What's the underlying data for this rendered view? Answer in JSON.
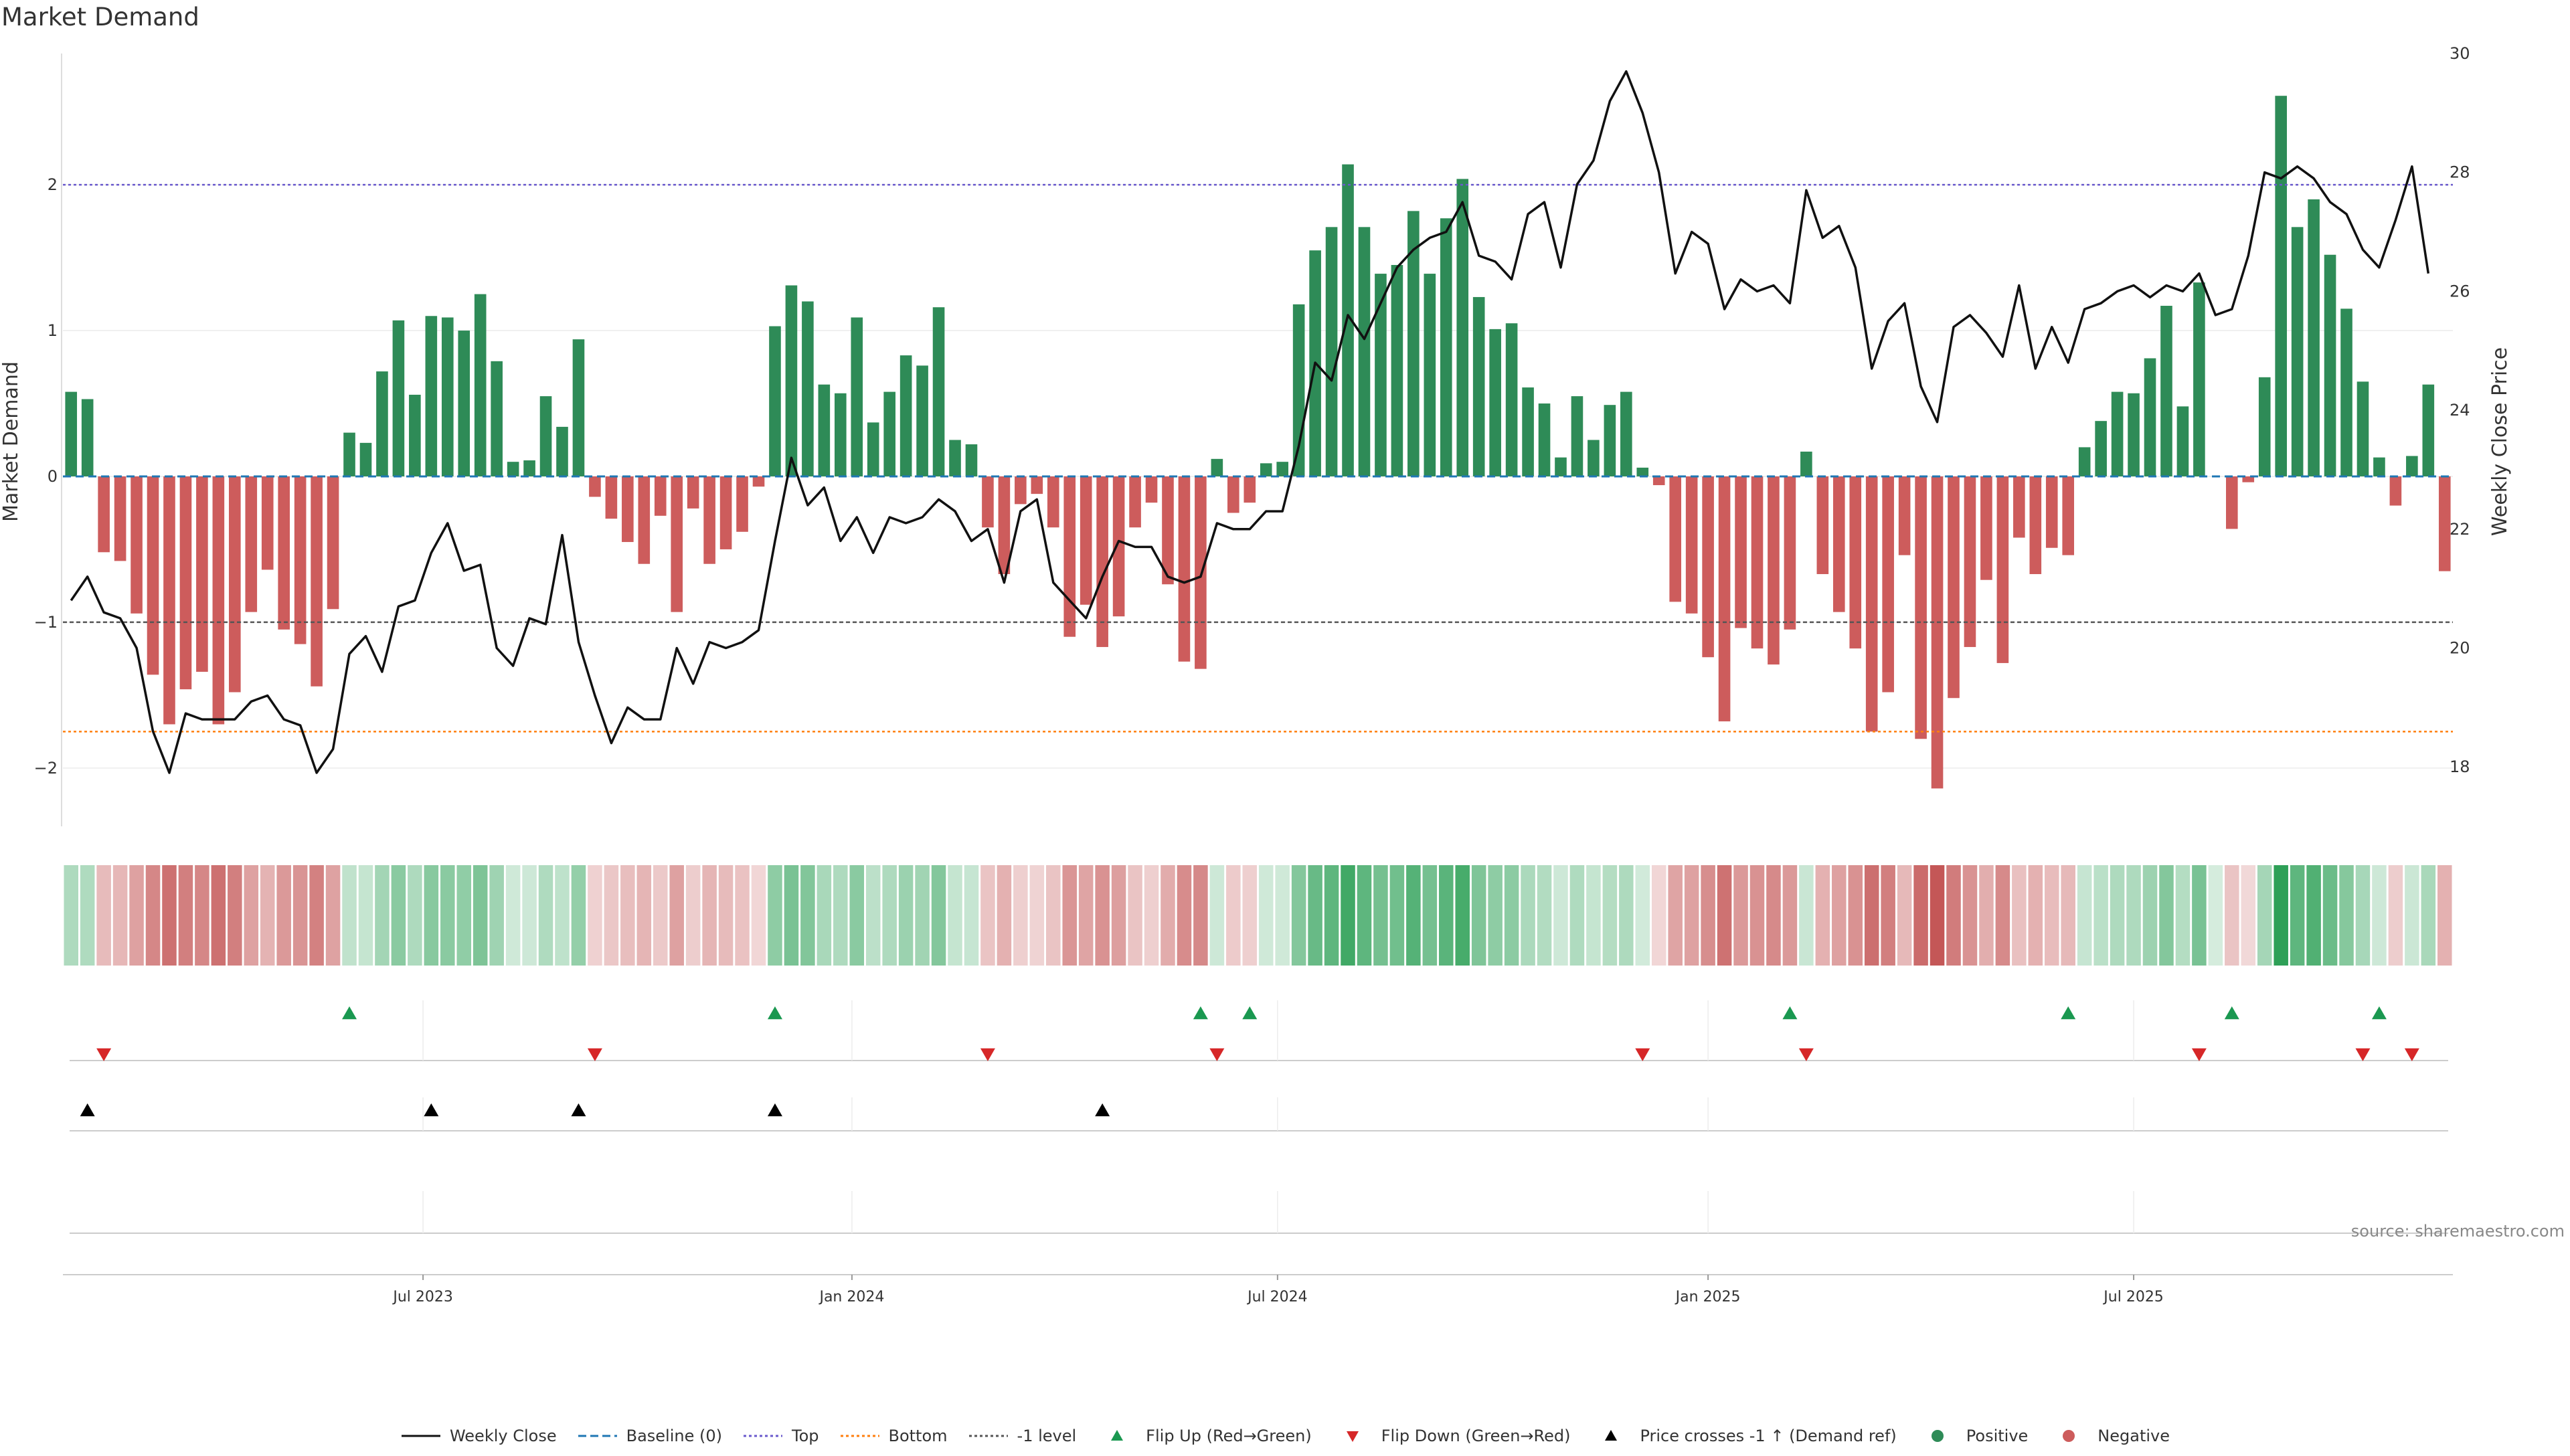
{
  "title": "Market Demand",
  "source": "source: sharemaestro.com",
  "colors": {
    "positive": "#2e8b57",
    "negative": "#cd5c5c",
    "close": "#111111",
    "baseline": "#1f77b4",
    "top": "#6a5acd",
    "bottom": "#ff7f0e",
    "minus1": "#555555",
    "flip_up": "#1a9850",
    "flip_down": "#d62728",
    "cross": "#000000"
  },
  "chart_data": {
    "type": "bar",
    "title": "Market Demand",
    "ylabel": "Market Demand",
    "y2label": "Weekly Close Price",
    "ylim": [
      -2.4,
      2.9
    ],
    "y2lim": [
      17,
      30
    ],
    "yticks": [
      -2,
      -1,
      0,
      1,
      2
    ],
    "y2ticks": [
      18,
      20,
      22,
      24,
      26,
      28,
      30
    ],
    "xticks": [
      {
        "label": "Jul 2023",
        "index": 21.5
      },
      {
        "label": "Jan 2024",
        "index": 47.7
      },
      {
        "label": "Jul 2024",
        "index": 73.7
      },
      {
        "label": "Jan 2025",
        "index": 100.0
      },
      {
        "label": "Jul 2025",
        "index": 126.0
      }
    ],
    "reference_lines": {
      "top": 2.0,
      "bottom": -1.75,
      "minus1": -1.0,
      "baseline": 0
    },
    "demand": [
      0.58,
      0.53,
      -0.52,
      -0.58,
      -0.94,
      -1.36,
      -1.7,
      -1.46,
      -1.34,
      -1.7,
      -1.48,
      -0.93,
      -0.64,
      -1.05,
      -1.15,
      -1.44,
      -0.91,
      0.3,
      0.23,
      0.72,
      1.07,
      0.56,
      1.1,
      1.09,
      1.0,
      1.25,
      0.79,
      0.1,
      0.11,
      0.55,
      0.34,
      0.94,
      -0.14,
      -0.29,
      -0.45,
      -0.6,
      -0.27,
      -0.93,
      -0.22,
      -0.6,
      -0.5,
      -0.38,
      -0.07,
      1.03,
      1.31,
      1.2,
      0.63,
      0.57,
      1.09,
      0.37,
      0.58,
      0.83,
      0.76,
      1.16,
      0.25,
      0.22,
      -0.35,
      -0.67,
      -0.19,
      -0.12,
      -0.35,
      -1.1,
      -0.88,
      -1.17,
      -0.96,
      -0.35,
      -0.18,
      -0.74,
      -1.27,
      -1.32,
      0.12,
      -0.25,
      -0.18,
      0.09,
      0.1,
      1.18,
      1.55,
      1.71,
      2.14,
      1.71,
      1.39,
      1.45,
      1.82,
      1.39,
      1.77,
      2.04,
      1.23,
      1.01,
      1.05,
      0.61,
      0.5,
      0.13,
      0.55,
      0.25,
      0.49,
      0.58,
      0.06,
      -0.06,
      -0.86,
      -0.94,
      -1.24,
      -1.68,
      -1.04,
      -1.18,
      -1.29,
      -1.05,
      0.17,
      -0.67,
      -0.93,
      -1.18,
      -1.75,
      -1.48,
      -0.54,
      -1.8,
      -2.14,
      -1.52,
      -1.17,
      -0.71,
      -1.28,
      -0.42,
      -0.67,
      -0.49,
      -0.54,
      0.2,
      0.38,
      0.58,
      0.57,
      0.81,
      1.17,
      0.48,
      1.33,
      0.0,
      -0.36,
      -0.04,
      0.68,
      2.61,
      1.71,
      1.9,
      1.52,
      1.15,
      0.65,
      0.13,
      -0.2,
      0.14,
      0.63,
      -0.65
    ],
    "close": [
      20.8,
      21.2,
      20.6,
      20.5,
      20.0,
      18.6,
      17.9,
      18.9,
      18.8,
      18.8,
      18.8,
      19.1,
      19.2,
      18.8,
      18.7,
      17.9,
      18.3,
      19.9,
      20.2,
      19.6,
      20.7,
      20.8,
      21.6,
      22.1,
      21.3,
      21.4,
      20.0,
      19.7,
      20.5,
      20.4,
      21.9,
      20.1,
      19.2,
      18.4,
      19.0,
      18.8,
      18.8,
      20.0,
      19.4,
      20.1,
      20.0,
      20.1,
      20.3,
      21.8,
      23.2,
      22.4,
      22.7,
      21.8,
      22.2,
      21.6,
      22.2,
      22.1,
      22.2,
      22.5,
      22.3,
      21.8,
      22.0,
      21.1,
      22.3,
      22.5,
      21.1,
      20.8,
      20.5,
      21.2,
      21.8,
      21.7,
      21.7,
      21.2,
      21.1,
      21.2,
      22.1,
      22.0,
      22.0,
      22.3,
      22.3,
      23.4,
      24.8,
      24.5,
      25.6,
      25.2,
      25.8,
      26.4,
      26.7,
      26.9,
      27.0,
      27.5,
      26.6,
      26.5,
      26.2,
      27.3,
      27.5,
      26.4,
      27.8,
      28.2,
      29.2,
      29.7,
      29.0,
      28.0,
      26.3,
      27.0,
      26.8,
      25.7,
      26.2,
      26.0,
      26.1,
      25.8,
      27.7,
      26.9,
      27.1,
      26.4,
      24.7,
      25.5,
      25.8,
      24.4,
      23.8,
      25.4,
      25.6,
      25.3,
      24.9,
      26.1,
      24.7,
      25.4,
      24.8,
      25.7,
      25.8,
      26.0,
      26.1,
      25.9,
      26.1,
      26.0,
      26.3,
      25.6,
      25.7,
      26.6,
      28.0,
      27.9,
      28.1,
      27.9,
      27.5,
      27.3,
      26.7,
      26.4,
      27.2,
      28.1,
      26.3
    ],
    "markers": {
      "flip_up": [
        17,
        43,
        69,
        72,
        105,
        122,
        132,
        141
      ],
      "flip_down": [
        2,
        32,
        56,
        70,
        96,
        106,
        130,
        140,
        143
      ],
      "cross_up": [
        1,
        22,
        31,
        43,
        63
      ]
    }
  },
  "legend": [
    {
      "label": "Weekly Close",
      "type": "solid",
      "color_key": "close"
    },
    {
      "label": "Baseline (0)",
      "type": "dashed",
      "color_key": "baseline"
    },
    {
      "label": "Top",
      "type": "dotted",
      "color_key": "top"
    },
    {
      "label": "Bottom",
      "type": "dotted",
      "color_key": "bottom"
    },
    {
      "label": "-1 level",
      "type": "dotted",
      "color_key": "minus1"
    },
    {
      "label": "Flip Up (Red→Green)",
      "type": "triangle-up",
      "color_key": "flip_up"
    },
    {
      "label": "Flip Down (Green→Red)",
      "type": "triangle-down",
      "color_key": "flip_down"
    },
    {
      "label": "Price crosses -1 ↑ (Demand ref)",
      "type": "triangle-up",
      "color_key": "cross"
    },
    {
      "label": "Positive",
      "type": "circle",
      "color_key": "positive"
    },
    {
      "label": "Negative",
      "type": "circle",
      "color_key": "negative"
    }
  ]
}
